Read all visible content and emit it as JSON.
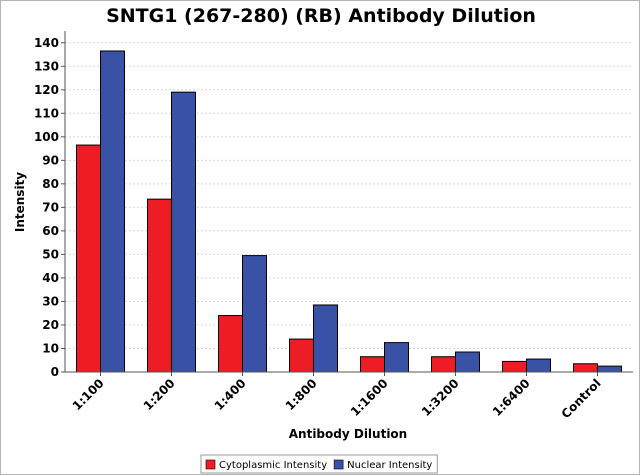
{
  "chart_data": {
    "type": "bar",
    "title": "SNTG1 (267-280) (RB) Antibody Dilution",
    "xlabel": "Antibody Dilution",
    "ylabel": "Intensity",
    "ylim": [
      0,
      145
    ],
    "yticks": [
      0,
      10,
      20,
      30,
      40,
      50,
      60,
      70,
      80,
      90,
      100,
      110,
      120,
      130,
      140
    ],
    "grid": true,
    "legend_position": "bottom-center",
    "categories": [
      "1:100",
      "1:200",
      "1:400",
      "1:800",
      "1:1600",
      "1:3200",
      "1:6400",
      "Control"
    ],
    "series": [
      {
        "name": "Cytoplasmic Intensity",
        "color": "#ee1c25",
        "values": [
          96.5,
          73.5,
          24,
          14,
          6.5,
          6.5,
          4.5,
          3.5
        ]
      },
      {
        "name": "Nuclear Intensity",
        "color": "#3a52a5",
        "values": [
          136.5,
          119,
          49.5,
          28.5,
          12.5,
          8.5,
          5.5,
          2.5
        ]
      }
    ]
  }
}
